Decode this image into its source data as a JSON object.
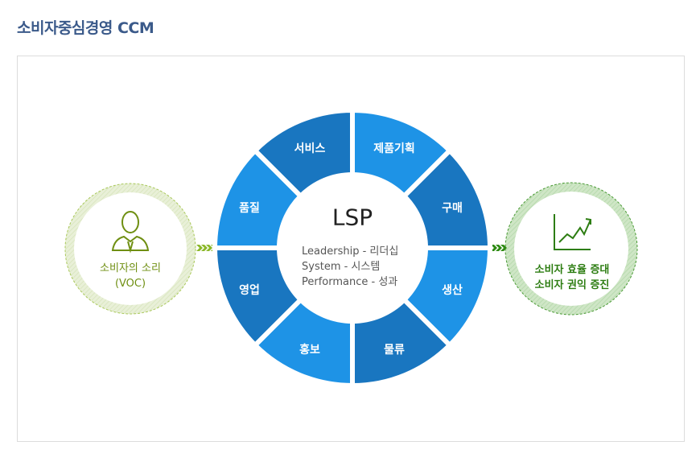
{
  "title": "소비자중심경영 CCM",
  "voc": {
    "line1": "소비자의 소리",
    "line2": "(VOC)",
    "icon": "person-icon",
    "color": "#6f8f12"
  },
  "result": {
    "line1": "소비자 효율 증대",
    "line2": "소비자 권익 증진",
    "icon": "growth-chart-icon",
    "color": "#2d7d12"
  },
  "center": {
    "title": "LSP",
    "lines": [
      "Leadership - 리더십",
      "System - 시스템",
      "Performance - 성과"
    ]
  },
  "segments": [
    {
      "label": "제품기획"
    },
    {
      "label": "구매"
    },
    {
      "label": "생산"
    },
    {
      "label": "물류"
    },
    {
      "label": "홍보"
    },
    {
      "label": "영업"
    },
    {
      "label": "품질"
    },
    {
      "label": "서비스"
    }
  ],
  "colors": {
    "light": "#1e93e6",
    "dark": "#1976c0"
  }
}
